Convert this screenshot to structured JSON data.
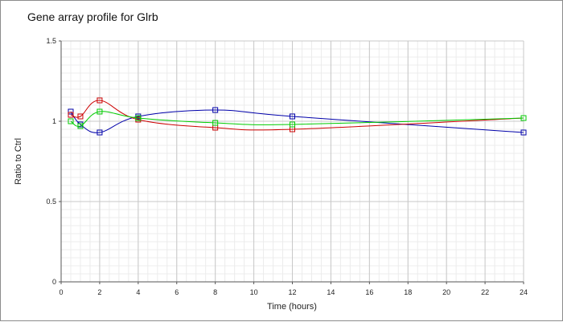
{
  "chart_data": {
    "type": "line",
    "title": "Gene array profile for Glrb",
    "xlabel": "Time (hours)",
    "ylabel": "Ratio to Ctrl",
    "xlim": [
      0,
      24
    ],
    "ylim": [
      0,
      1.5
    ],
    "x_ticks": [
      0,
      2,
      4,
      6,
      8,
      10,
      12,
      14,
      16,
      18,
      20,
      22,
      24
    ],
    "y_ticks": [
      0,
      0.5,
      1,
      1.5
    ],
    "x_tick_labels": [
      "0",
      "2",
      "4",
      "6",
      "8",
      "10",
      "12",
      "14",
      "16",
      "18",
      "20",
      "22",
      "24"
    ],
    "y_tick_labels": [
      "0",
      "0.5",
      "1",
      "1.5"
    ],
    "grid": true,
    "minor_grid": true,
    "legend": "none",
    "marker": "square",
    "series": [
      {
        "color": "#0000aa",
        "x": [
          0.5,
          1,
          2,
          4,
          8,
          12,
          24
        ],
        "y": [
          1.06,
          0.98,
          0.93,
          1.03,
          1.07,
          1.03,
          0.93
        ]
      },
      {
        "color": "#cc0000",
        "x": [
          0.5,
          1,
          2,
          4,
          8,
          12,
          24
        ],
        "y": [
          1.04,
          1.03,
          1.13,
          1.01,
          0.96,
          0.95,
          1.02
        ]
      },
      {
        "color": "#00cc00",
        "x": [
          0.5,
          1,
          2,
          4,
          8,
          12,
          24
        ],
        "y": [
          1.0,
          0.97,
          1.06,
          1.02,
          0.99,
          0.98,
          1.02
        ]
      }
    ]
  }
}
